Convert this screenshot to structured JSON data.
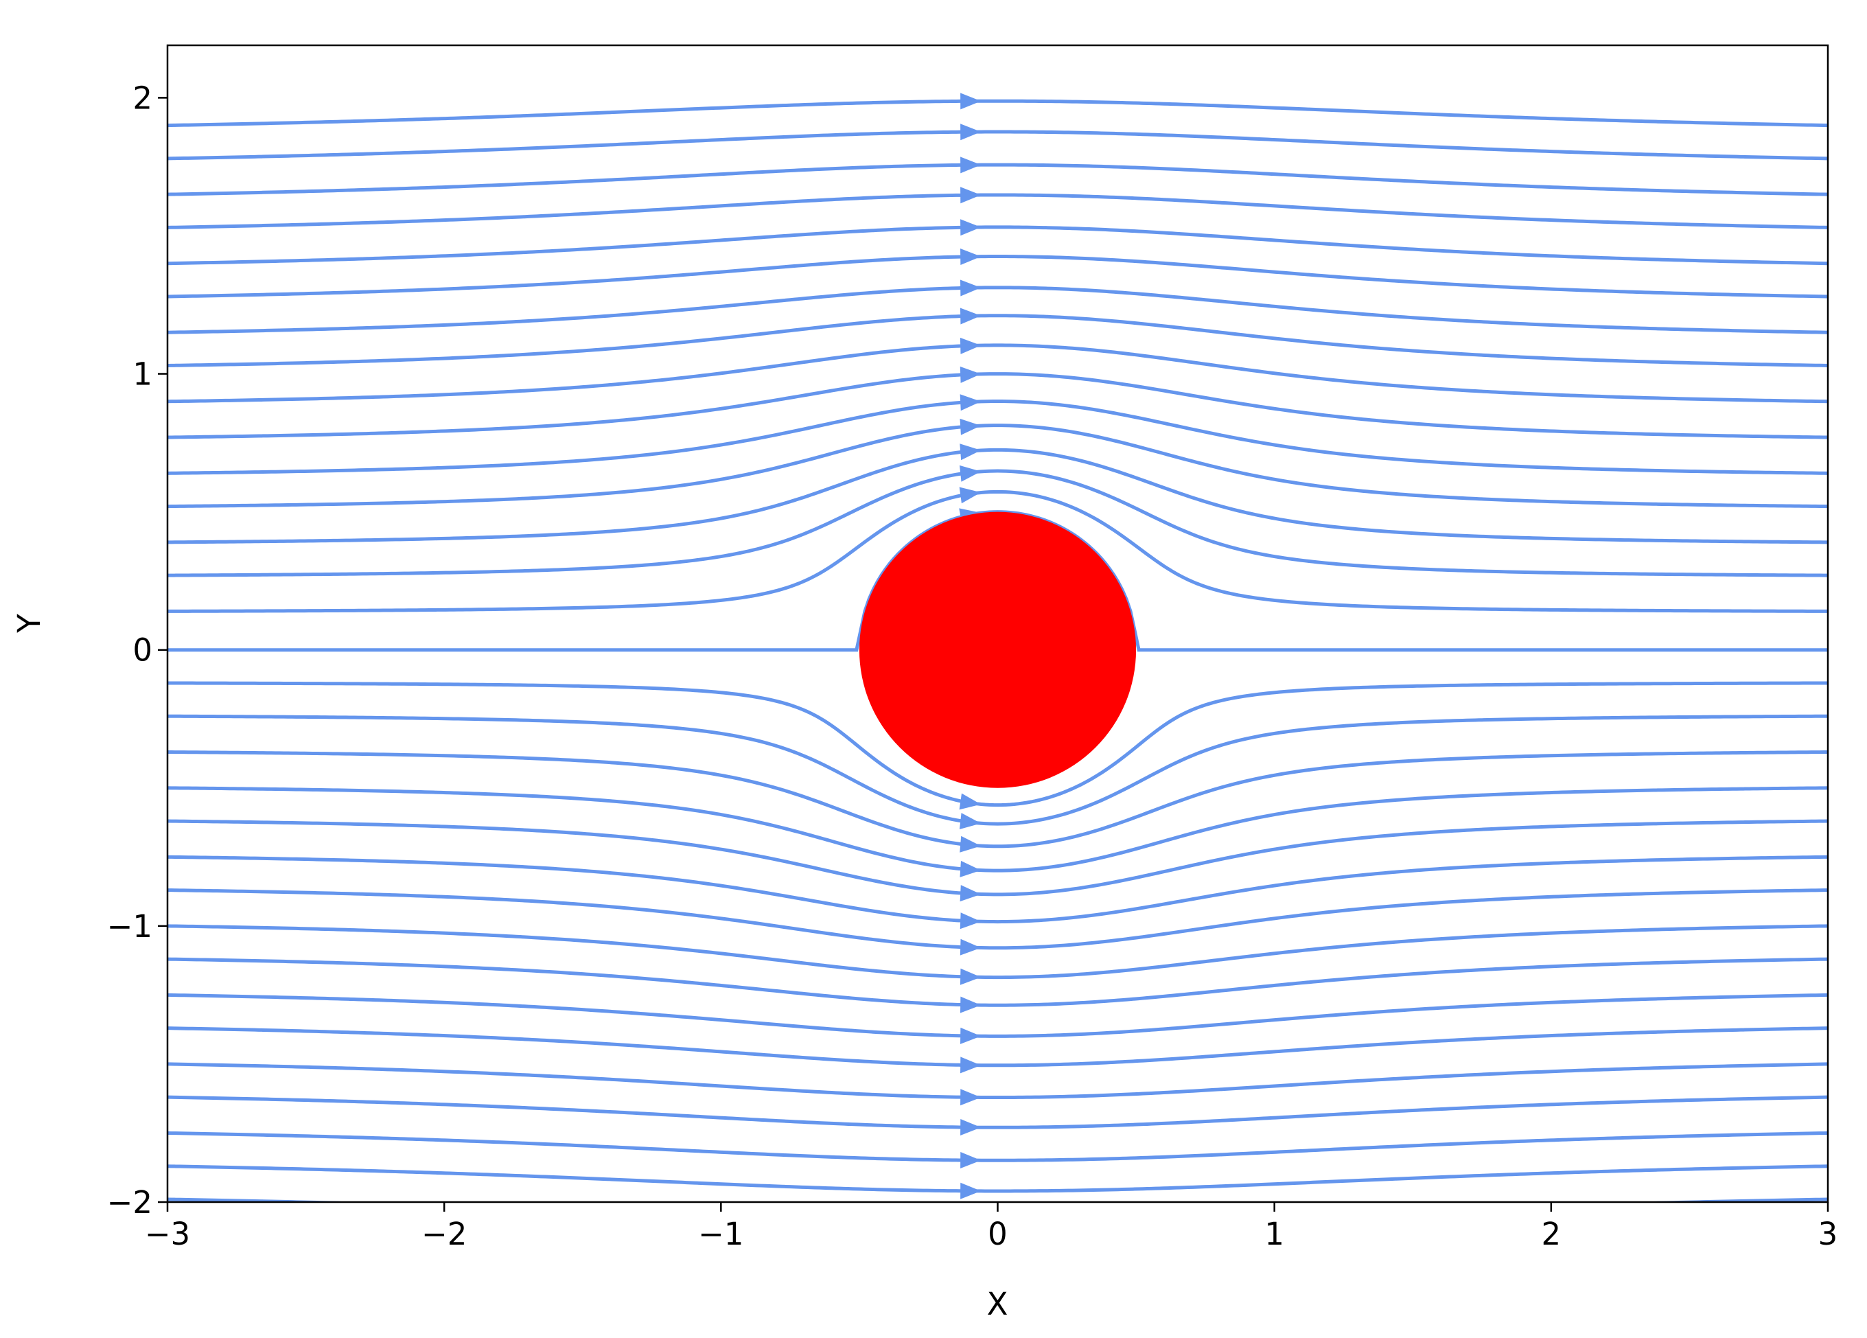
{
  "chart_data": {
    "type": "streamplot",
    "x_label": "X",
    "y_label": "Y",
    "xlim": [
      -3,
      3
    ],
    "ylim": [
      -2,
      2.19
    ],
    "xticks": [
      {
        "value": -3,
        "label": "−3"
      },
      {
        "value": -2,
        "label": "−2"
      },
      {
        "value": -1,
        "label": "−1"
      },
      0,
      1,
      2,
      3
    ],
    "yticks": [
      {
        "value": -2,
        "label": "−2"
      },
      {
        "value": -1,
        "label": "−1"
      },
      0,
      1,
      2
    ],
    "color": "#6495ed",
    "y_start": [
      1.9,
      1.78,
      1.65,
      1.53,
      1.4,
      1.28,
      1.15,
      1.03,
      0.9,
      0.77,
      0.64,
      0.52,
      0.39,
      0.27,
      0.14,
      0,
      -0.12,
      -0.24,
      -0.37,
      -0.5,
      -0.62,
      -0.75,
      -0.87,
      -1.0,
      -1.12,
      -1.25,
      -1.37,
      -1.5,
      -1.62,
      -1.75,
      -1.87,
      -1.99
    ],
    "cylinder": {
      "center": [
        0,
        0
      ],
      "radius": 0.5,
      "color": "#ff0000"
    }
  }
}
